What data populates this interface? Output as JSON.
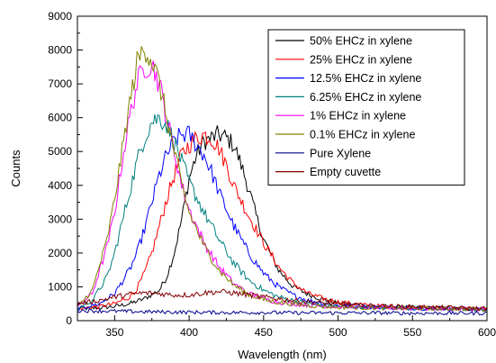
{
  "chart_data": {
    "type": "line",
    "title": "",
    "xlabel": "Wavelength (nm)",
    "ylabel": "Counts",
    "xlim": [
      325,
      600
    ],
    "ylim": [
      0,
      9000
    ],
    "x_ticks": [
      350,
      400,
      450,
      500,
      550,
      600
    ],
    "y_ticks": [
      0,
      1000,
      2000,
      3000,
      4000,
      5000,
      6000,
      7000,
      8000,
      9000
    ],
    "grid": false,
    "legend_position": "top-right",
    "series": [
      {
        "name": "50% EHCz in xylene",
        "color": "#000000",
        "x": [
          325,
          340,
          350,
          360,
          370,
          380,
          385,
          390,
          395,
          400,
          405,
          410,
          415,
          420,
          425,
          430,
          435,
          440,
          445,
          450,
          460,
          470,
          480,
          490,
          500,
          520,
          540,
          560,
          580,
          600
        ],
        "y": [
          350,
          380,
          420,
          500,
          650,
          900,
          1300,
          2000,
          3000,
          4200,
          4900,
          5300,
          5400,
          5500,
          5400,
          5200,
          4600,
          3900,
          3100,
          2400,
          1500,
          1000,
          780,
          630,
          520,
          440,
          400,
          380,
          360,
          330
        ]
      },
      {
        "name": "25%  EHCz in xylene",
        "color": "#ff0000",
        "x": [
          325,
          340,
          350,
          360,
          365,
          370,
          375,
          380,
          385,
          390,
          395,
          400,
          405,
          410,
          415,
          420,
          425,
          430,
          440,
          450,
          460,
          470,
          480,
          490,
          500,
          520,
          540,
          560,
          580,
          600
        ],
        "y": [
          350,
          420,
          500,
          700,
          950,
          1400,
          2000,
          2800,
          3600,
          4300,
          4900,
          5200,
          5400,
          5500,
          5400,
          5100,
          4600,
          4000,
          3100,
          2300,
          1600,
          1100,
          800,
          650,
          550,
          450,
          400,
          380,
          360,
          340
        ]
      },
      {
        "name": "12.5%  EHCz in xylene",
        "color": "#0000ff",
        "x": [
          325,
          340,
          350,
          360,
          365,
          370,
          375,
          380,
          385,
          390,
          395,
          400,
          405,
          410,
          415,
          420,
          425,
          430,
          440,
          450,
          460,
          470,
          480,
          490,
          500,
          520,
          540,
          560,
          580,
          600
        ],
        "y": [
          350,
          500,
          800,
          1500,
          2000,
          2700,
          3500,
          4300,
          4900,
          5300,
          5500,
          5500,
          5200,
          4900,
          4400,
          3800,
          3300,
          2800,
          2000,
          1400,
          1000,
          750,
          600,
          520,
          450,
          400,
          380,
          360,
          350,
          330
        ]
      },
      {
        "name": "6.25%  EHCz in xylene",
        "color": "#008080",
        "x": [
          325,
          335,
          345,
          350,
          355,
          360,
          365,
          370,
          375,
          380,
          385,
          390,
          395,
          400,
          410,
          420,
          430,
          440,
          450,
          460,
          470,
          480,
          490,
          500,
          520,
          540,
          560,
          580,
          600
        ],
        "y": [
          350,
          600,
          1300,
          2000,
          2900,
          3800,
          4700,
          5400,
          5900,
          6000,
          5800,
          5300,
          4700,
          4100,
          3200,
          2400,
          1700,
          1200,
          900,
          700,
          600,
          500,
          450,
          420,
          400,
          380,
          360,
          350,
          330
        ]
      },
      {
        "name": "1%  EHCz in xylene",
        "color": "#ff00ff",
        "x": [
          325,
          335,
          345,
          350,
          355,
          360,
          365,
          370,
          375,
          380,
          385,
          390,
          395,
          400,
          410,
          420,
          430,
          440,
          450,
          460,
          470,
          480,
          490,
          500,
          520,
          540,
          560,
          580,
          600
        ],
        "y": [
          400,
          800,
          2200,
          3200,
          4700,
          6000,
          7000,
          7500,
          7600,
          7000,
          6000,
          5000,
          4000,
          3300,
          2300,
          1600,
          1100,
          800,
          650,
          550,
          500,
          460,
          430,
          410,
          390,
          370,
          360,
          350,
          340
        ]
      },
      {
        "name": "0.1%  EHCz in xylene",
        "color": "#808000",
        "x": [
          325,
          335,
          345,
          350,
          355,
          360,
          365,
          370,
          375,
          380,
          385,
          390,
          395,
          400,
          410,
          420,
          430,
          440,
          450,
          460,
          470,
          480,
          490,
          500,
          520,
          540,
          560,
          580,
          600
        ],
        "y": [
          400,
          900,
          2400,
          3600,
          5000,
          6400,
          7600,
          8100,
          7700,
          7000,
          6000,
          5000,
          4000,
          3200,
          2200,
          1500,
          1050,
          780,
          620,
          540,
          490,
          450,
          420,
          400,
          380,
          370,
          360,
          350,
          340
        ]
      },
      {
        "name": "Pure Xylene",
        "color": "#00008b",
        "x": [
          325,
          350,
          375,
          400,
          425,
          450,
          475,
          500,
          525,
          550,
          575,
          600
        ],
        "y": [
          300,
          280,
          260,
          250,
          240,
          240,
          230,
          230,
          230,
          220,
          220,
          220
        ]
      },
      {
        "name": "Empty cuvette",
        "color": "#800000",
        "x": [
          325,
          340,
          350,
          360,
          370,
          380,
          390,
          400,
          410,
          420,
          430,
          440,
          450,
          460,
          470,
          480,
          490,
          500,
          520,
          540,
          560,
          580,
          600
        ],
        "y": [
          500,
          600,
          700,
          780,
          820,
          800,
          760,
          760,
          820,
          860,
          820,
          760,
          700,
          650,
          600,
          560,
          520,
          480,
          450,
          420,
          400,
          380,
          360
        ]
      }
    ]
  }
}
